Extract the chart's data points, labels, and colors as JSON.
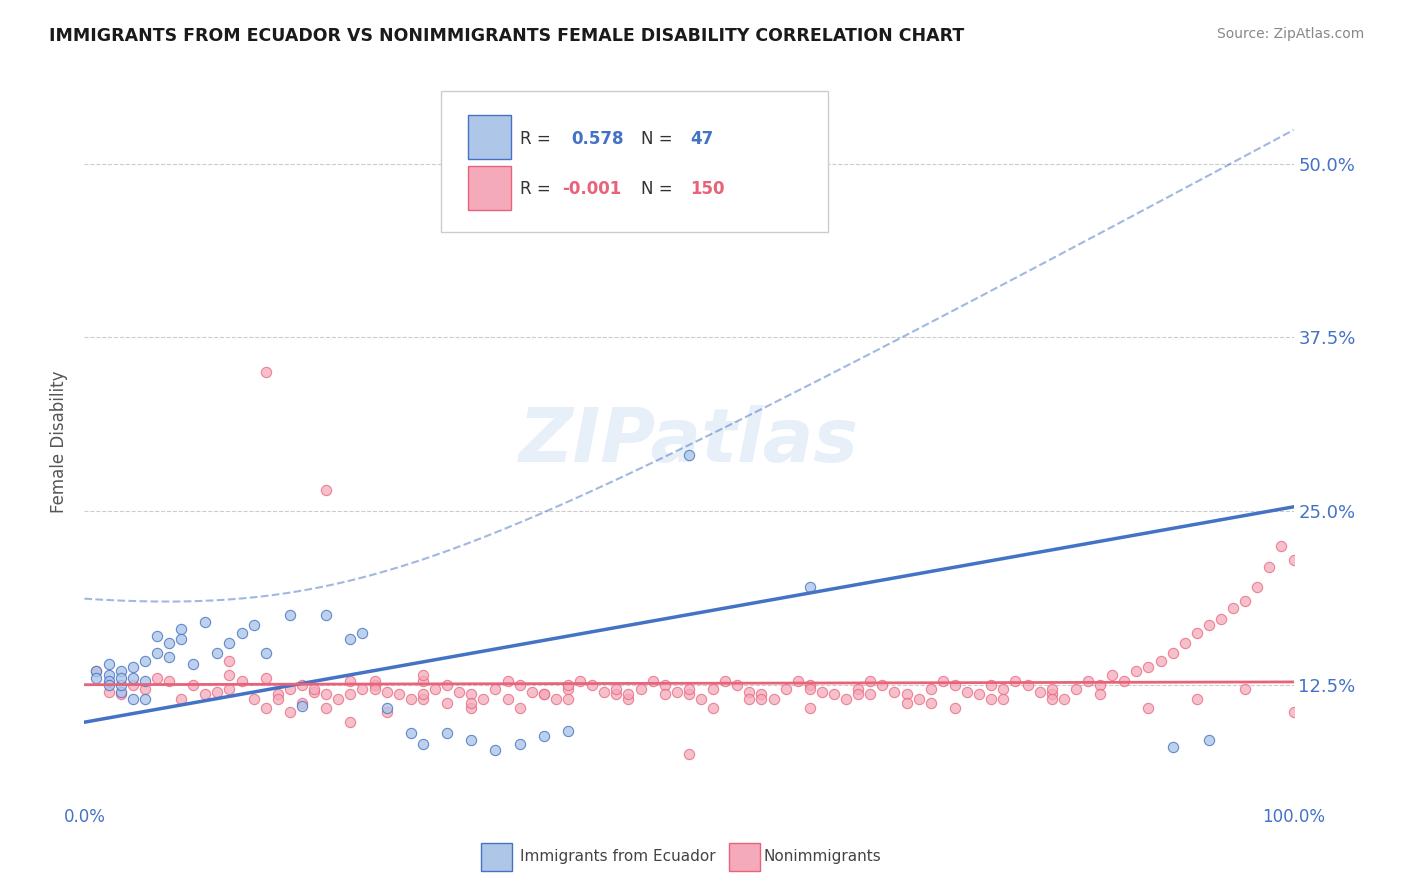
{
  "title": "IMMIGRANTS FROM ECUADOR VS NONIMMIGRANTS FEMALE DISABILITY CORRELATION CHART",
  "source": "Source: ZipAtlas.com",
  "ylabel": "Female Disability",
  "y_ticks": [
    0.125,
    0.25,
    0.375,
    0.5
  ],
  "y_tick_labels": [
    "12.5%",
    "25.0%",
    "37.5%",
    "50.0%"
  ],
  "x_lim": [
    0.0,
    1.0
  ],
  "y_lim": [
    0.04,
    0.56
  ],
  "r_ecuador": 0.578,
  "n_ecuador": 47,
  "r_nonimm": -0.001,
  "n_nonimm": 150,
  "blue_color": "#4472C4",
  "blue_light": "#AEC6E8",
  "pink_color": "#E8637A",
  "pink_light": "#F4AABB",
  "background_color": "#FFFFFF",
  "watermark": "ZIPatlas",
  "ecuador_x": [
    0.01,
    0.01,
    0.02,
    0.02,
    0.02,
    0.02,
    0.03,
    0.03,
    0.03,
    0.03,
    0.04,
    0.04,
    0.04,
    0.05,
    0.05,
    0.05,
    0.06,
    0.06,
    0.07,
    0.07,
    0.08,
    0.08,
    0.09,
    0.1,
    0.11,
    0.12,
    0.13,
    0.14,
    0.15,
    0.17,
    0.18,
    0.2,
    0.22,
    0.23,
    0.25,
    0.27,
    0.28,
    0.3,
    0.32,
    0.34,
    0.36,
    0.38,
    0.4,
    0.5,
    0.6,
    0.9,
    0.93
  ],
  "ecuador_y": [
    0.135,
    0.13,
    0.132,
    0.128,
    0.125,
    0.14,
    0.12,
    0.125,
    0.135,
    0.13,
    0.115,
    0.13,
    0.138,
    0.128,
    0.115,
    0.142,
    0.16,
    0.148,
    0.155,
    0.145,
    0.165,
    0.158,
    0.14,
    0.17,
    0.148,
    0.155,
    0.162,
    0.168,
    0.148,
    0.175,
    0.11,
    0.175,
    0.158,
    0.162,
    0.108,
    0.09,
    0.082,
    0.09,
    0.085,
    0.078,
    0.082,
    0.088,
    0.092,
    0.29,
    0.195,
    0.08,
    0.085
  ],
  "nonimm_x": [
    0.01,
    0.02,
    0.03,
    0.04,
    0.05,
    0.06,
    0.07,
    0.08,
    0.09,
    0.1,
    0.11,
    0.12,
    0.13,
    0.14,
    0.15,
    0.16,
    0.17,
    0.18,
    0.19,
    0.2,
    0.21,
    0.22,
    0.23,
    0.24,
    0.25,
    0.26,
    0.27,
    0.28,
    0.29,
    0.3,
    0.31,
    0.32,
    0.33,
    0.34,
    0.35,
    0.36,
    0.37,
    0.38,
    0.39,
    0.4,
    0.41,
    0.42,
    0.43,
    0.44,
    0.45,
    0.46,
    0.47,
    0.48,
    0.49,
    0.5,
    0.51,
    0.52,
    0.53,
    0.54,
    0.55,
    0.56,
    0.57,
    0.58,
    0.59,
    0.6,
    0.61,
    0.62,
    0.63,
    0.64,
    0.65,
    0.66,
    0.67,
    0.68,
    0.69,
    0.7,
    0.71,
    0.72,
    0.73,
    0.74,
    0.75,
    0.76,
    0.77,
    0.78,
    0.79,
    0.8,
    0.81,
    0.82,
    0.83,
    0.84,
    0.85,
    0.86,
    0.87,
    0.88,
    0.89,
    0.9,
    0.91,
    0.92,
    0.93,
    0.94,
    0.95,
    0.96,
    0.97,
    0.98,
    0.99,
    1.0,
    0.15,
    0.18,
    0.22,
    0.25,
    0.28,
    0.35,
    0.38,
    0.15,
    0.2,
    0.12,
    0.32,
    0.28,
    0.19,
    0.17,
    0.24,
    0.3,
    0.22,
    0.4,
    0.45,
    0.5,
    0.55,
    0.6,
    0.65,
    0.7,
    0.75,
    0.8,
    0.12,
    0.16,
    0.2,
    0.24,
    0.28,
    0.32,
    0.36,
    0.4,
    0.44,
    0.48,
    0.52,
    0.56,
    0.6,
    0.64,
    0.68,
    0.72,
    0.76,
    0.8,
    0.84,
    0.88,
    0.92,
    0.96,
    1.0,
    0.5
  ],
  "nonimm_y": [
    0.135,
    0.12,
    0.118,
    0.125,
    0.122,
    0.13,
    0.128,
    0.115,
    0.125,
    0.118,
    0.12,
    0.122,
    0.128,
    0.115,
    0.13,
    0.118,
    0.122,
    0.125,
    0.12,
    0.118,
    0.115,
    0.128,
    0.122,
    0.125,
    0.12,
    0.118,
    0.115,
    0.128,
    0.122,
    0.125,
    0.12,
    0.118,
    0.115,
    0.122,
    0.128,
    0.125,
    0.12,
    0.118,
    0.115,
    0.122,
    0.128,
    0.125,
    0.12,
    0.118,
    0.115,
    0.122,
    0.128,
    0.125,
    0.12,
    0.118,
    0.115,
    0.122,
    0.128,
    0.125,
    0.12,
    0.118,
    0.115,
    0.122,
    0.128,
    0.125,
    0.12,
    0.118,
    0.115,
    0.122,
    0.128,
    0.125,
    0.12,
    0.118,
    0.115,
    0.122,
    0.128,
    0.125,
    0.12,
    0.118,
    0.115,
    0.122,
    0.128,
    0.125,
    0.12,
    0.118,
    0.115,
    0.122,
    0.128,
    0.125,
    0.132,
    0.128,
    0.135,
    0.138,
    0.142,
    0.148,
    0.155,
    0.162,
    0.168,
    0.172,
    0.18,
    0.185,
    0.195,
    0.21,
    0.225,
    0.215,
    0.108,
    0.112,
    0.118,
    0.105,
    0.132,
    0.115,
    0.118,
    0.35,
    0.265,
    0.142,
    0.108,
    0.115,
    0.122,
    0.105,
    0.128,
    0.112,
    0.098,
    0.125,
    0.118,
    0.122,
    0.115,
    0.108,
    0.118,
    0.112,
    0.125,
    0.115,
    0.132,
    0.115,
    0.108,
    0.122,
    0.118,
    0.112,
    0.108,
    0.115,
    0.122,
    0.118,
    0.108,
    0.115,
    0.122,
    0.118,
    0.112,
    0.108,
    0.115,
    0.122,
    0.118,
    0.108,
    0.115,
    0.122,
    0.105,
    0.075
  ]
}
